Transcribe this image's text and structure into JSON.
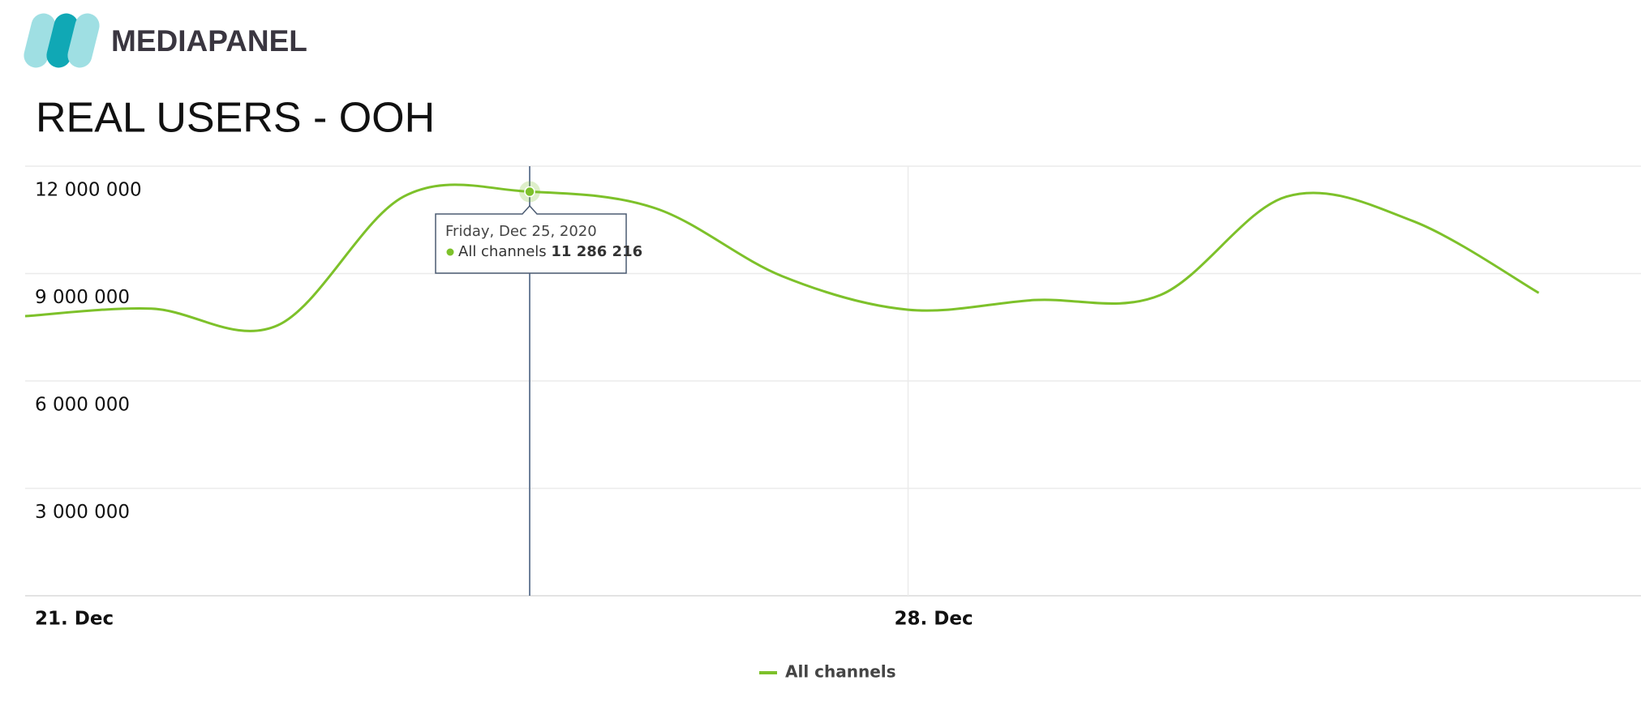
{
  "header": {
    "logo_text": "MEDIAPANEL",
    "title": "REAL USERS - OOH"
  },
  "chart_data": {
    "type": "line",
    "categories": [
      "21. Dec",
      null,
      null,
      null,
      null,
      null,
      null,
      "28. Dec",
      null,
      null,
      null,
      null,
      null
    ],
    "series": [
      {
        "name": "All channels",
        "color": "#7dc12a",
        "values": [
          7810000,
          8020000,
          7550000,
          11150000,
          11286216,
          10820000,
          8930000,
          7990000,
          8260000,
          8400000,
          11150000,
          10470000,
          8460000
        ],
        "value_labels": [
          null,
          null,
          null,
          null,
          "11 286 216",
          null,
          null,
          null,
          null,
          null,
          null,
          null,
          null
        ]
      }
    ],
    "ylim": [
      0,
      12000000
    ],
    "yticks": [
      {
        "value": 3000000,
        "label": "3 000 000"
      },
      {
        "value": 6000000,
        "label": "6 000 000"
      },
      {
        "value": 9000000,
        "label": "9 000 000"
      },
      {
        "value": 12000000,
        "label": "12 000 000"
      }
    ],
    "grid": true,
    "tooltip": {
      "index": 4,
      "title": "Friday, Dec 25, 2020"
    },
    "legend": "bottom"
  }
}
